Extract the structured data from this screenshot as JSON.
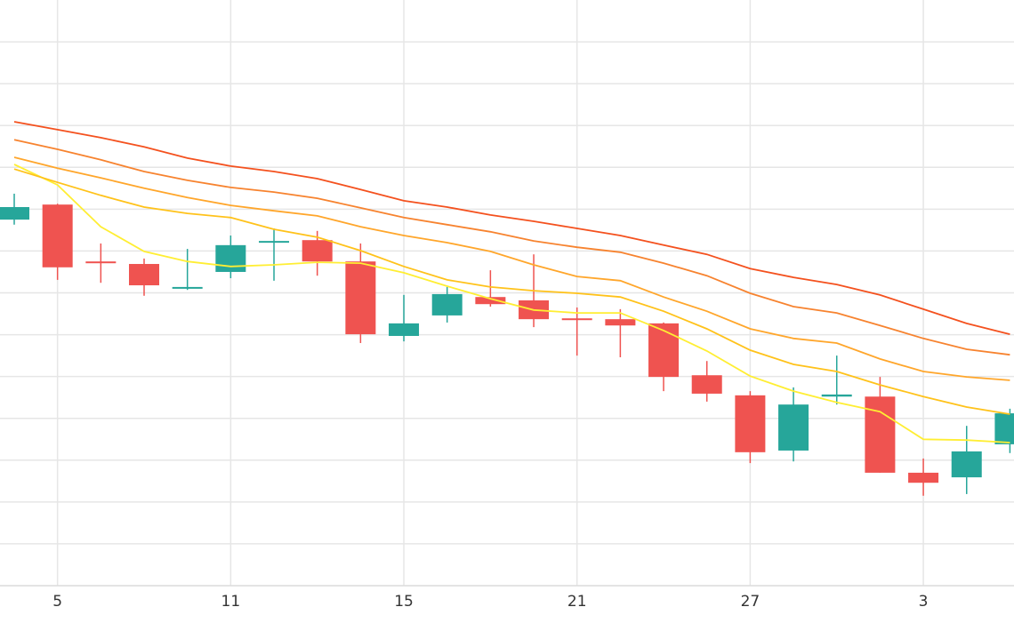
{
  "chart_data": {
    "type": "candlestick",
    "categories": [
      null,
      "5",
      null,
      null,
      null,
      "11",
      null,
      null,
      null,
      "15",
      null,
      null,
      null,
      "21",
      null,
      null,
      null,
      "27",
      null,
      null,
      null,
      "3",
      null,
      null
    ],
    "open": [
      8.75,
      9.11,
      7.75,
      7.69,
      7.1,
      7.5,
      8.22,
      8.26,
      7.75,
      5.97,
      6.46,
      6.9,
      6.82,
      6.39,
      6.37,
      6.27,
      5.03,
      4.55,
      3.23,
      4.52,
      4.52,
      2.7,
      2.59,
      3.38
    ],
    "high": [
      9.37,
      9.13,
      8.18,
      7.82,
      8.05,
      8.37,
      8.54,
      8.48,
      8.18,
      6.95,
      7.14,
      7.54,
      7.92,
      6.65,
      6.61,
      6.29,
      5.37,
      4.65,
      4.74,
      5.5,
      4.99,
      3.04,
      3.82,
      4.23
    ],
    "low": [
      8.63,
      7.31,
      7.24,
      6.93,
      7.07,
      7.35,
      7.29,
      7.41,
      5.8,
      5.84,
      6.29,
      6.67,
      6.18,
      5.5,
      5.46,
      4.65,
      4.4,
      2.93,
      2.97,
      4.33,
      2.7,
      2.15,
      2.19,
      3.17
    ],
    "close": [
      9.05,
      7.61,
      7.73,
      7.18,
      7.14,
      8.14,
      8.24,
      7.75,
      6.01,
      6.27,
      6.97,
      6.73,
      6.37,
      6.35,
      6.22,
      4.99,
      4.59,
      3.19,
      4.33,
      4.57,
      2.7,
      2.46,
      3.21,
      4.12
    ],
    "up_color": "#26a69a",
    "down_color": "#ef5350",
    "moving_averages": [
      {
        "color": "#ffee33",
        "values": [
          10.07,
          9.58,
          8.58,
          7.99,
          7.75,
          7.63,
          7.67,
          7.73,
          7.71,
          7.48,
          7.16,
          6.86,
          6.59,
          6.52,
          6.52,
          6.1,
          5.61,
          5.01,
          4.65,
          4.38,
          4.16,
          3.5,
          3.48,
          3.42
        ]
      },
      {
        "color": "#ffc21a",
        "values": [
          9.96,
          9.64,
          9.33,
          9.05,
          8.9,
          8.8,
          8.52,
          8.33,
          8.01,
          7.63,
          7.31,
          7.14,
          7.05,
          6.99,
          6.9,
          6.56,
          6.14,
          5.63,
          5.29,
          5.12,
          4.8,
          4.52,
          4.27,
          4.1
        ]
      },
      {
        "color": "#ffa62b",
        "values": [
          10.24,
          9.98,
          9.75,
          9.5,
          9.28,
          9.09,
          8.96,
          8.84,
          8.58,
          8.37,
          8.2,
          7.99,
          7.67,
          7.39,
          7.29,
          6.9,
          6.56,
          6.14,
          5.91,
          5.8,
          5.42,
          5.12,
          4.99,
          4.91
        ]
      },
      {
        "color": "#f7832f",
        "values": [
          10.66,
          10.43,
          10.18,
          9.9,
          9.69,
          9.52,
          9.41,
          9.26,
          9.03,
          8.8,
          8.63,
          8.46,
          8.24,
          8.09,
          7.97,
          7.71,
          7.41,
          6.99,
          6.67,
          6.52,
          6.22,
          5.91,
          5.65,
          5.52
        ]
      },
      {
        "color": "#f4511e",
        "values": [
          11.09,
          10.9,
          10.71,
          10.49,
          10.22,
          10.03,
          9.9,
          9.73,
          9.47,
          9.2,
          9.05,
          8.86,
          8.71,
          8.54,
          8.37,
          8.14,
          7.92,
          7.58,
          7.37,
          7.2,
          6.95,
          6.61,
          6.27,
          6.01
        ]
      }
    ],
    "ylim": [
      0,
      14
    ],
    "yticks": [
      1,
      2,
      3,
      4,
      5,
      6,
      7,
      8,
      9,
      10,
      11,
      12,
      13
    ],
    "grid": true
  }
}
